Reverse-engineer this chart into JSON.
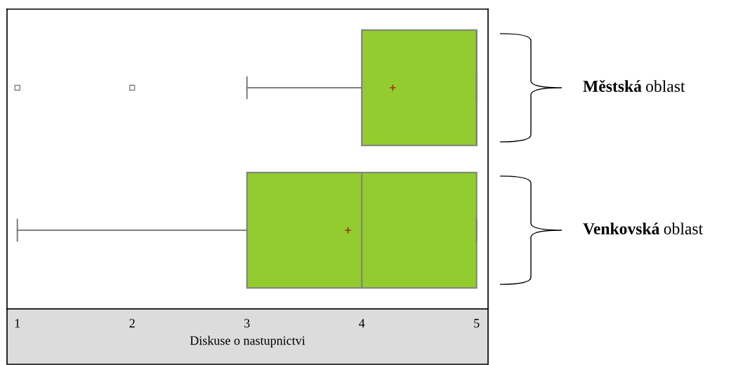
{
  "chart_data": {
    "type": "box",
    "orientation": "horizontal",
    "xlabel": "Diskuse o nastupnictvi",
    "categories": [
      "Městská oblast",
      "Venkovská oblast"
    ],
    "series": [
      {
        "color": "#92cc2e",
        "boxes": [
          {
            "low": 3,
            "q1": 4,
            "median": 5,
            "q3": 5,
            "high": 5,
            "mean": 4.27,
            "outliers": [
              1,
              2
            ]
          },
          {
            "low": 1,
            "q1": 3,
            "median": 4,
            "q3": 5,
            "high": 5,
            "mean": 3.88
          }
        ]
      }
    ],
    "xlim": [
      0.91,
      5.1
    ],
    "xticks": [
      1,
      2,
      3,
      4,
      5
    ],
    "tick_labels": "x",
    "grid": false
  }
}
